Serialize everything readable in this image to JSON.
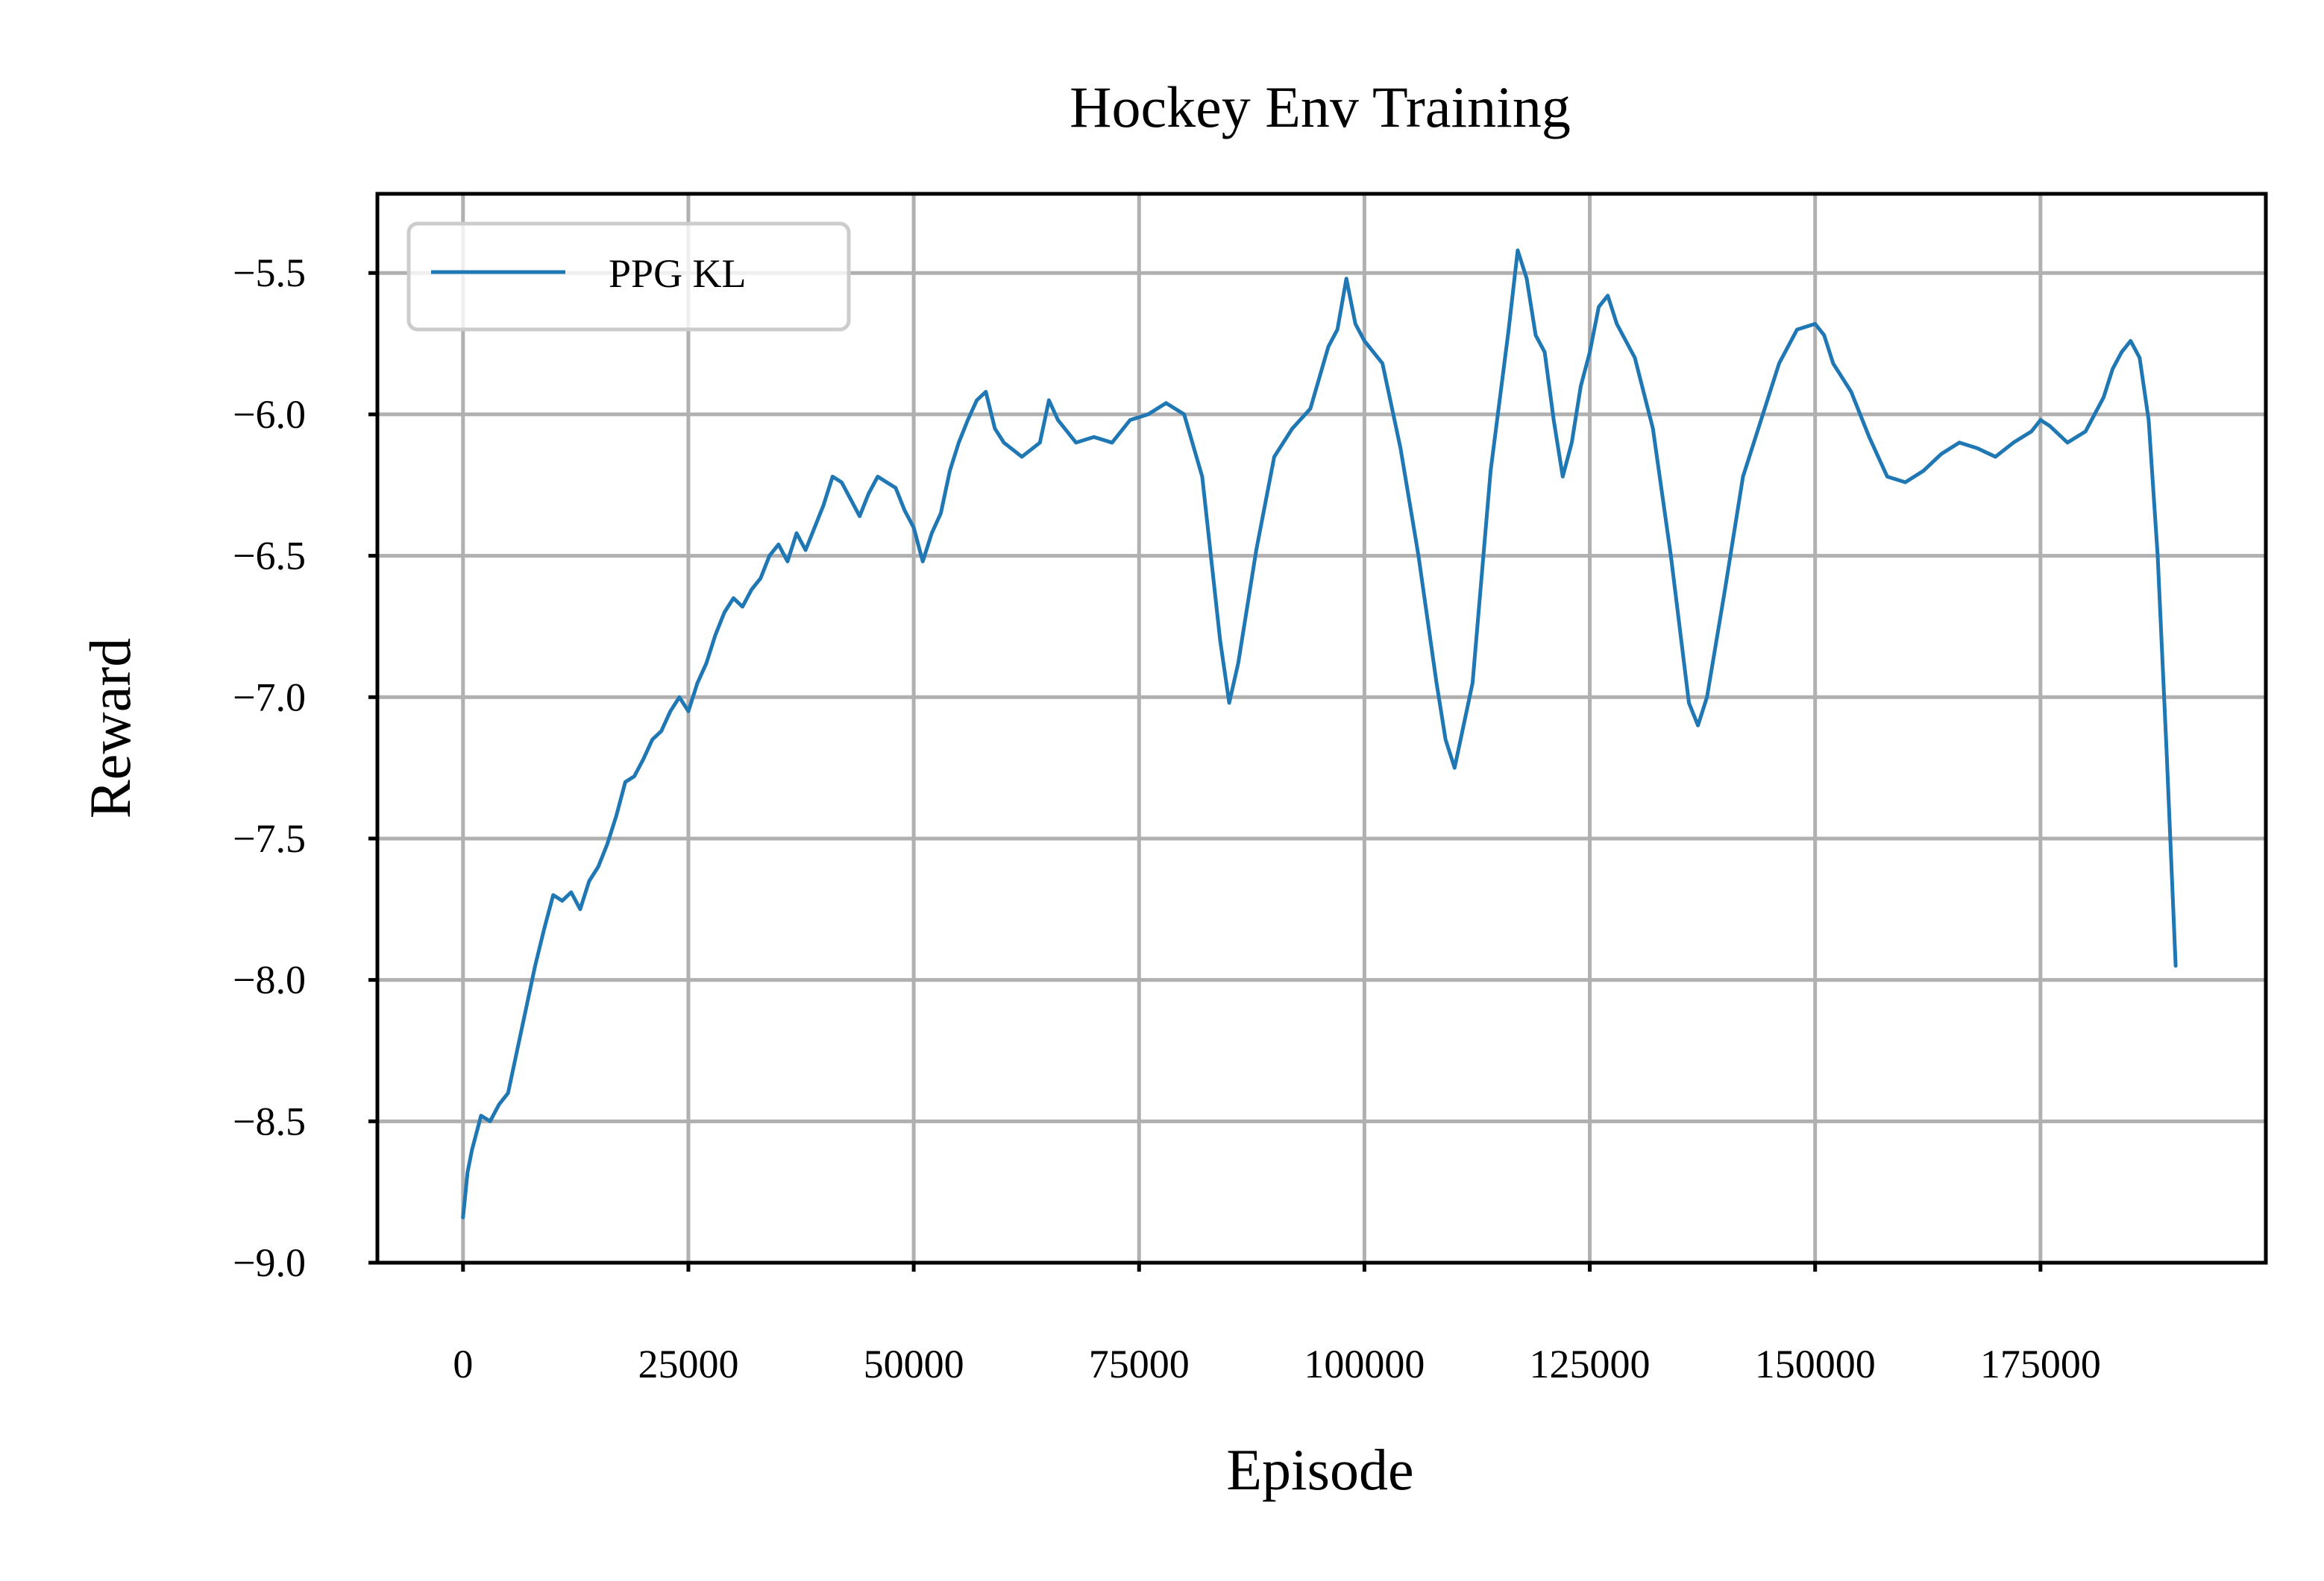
{
  "chart_data": {
    "type": "line",
    "title": "Hockey Env Training",
    "xlabel": "Episode",
    "ylabel": "Reward",
    "xlim": [
      -9500,
      200000
    ],
    "ylim": [
      -9.0,
      -5.22
    ],
    "xticks": [
      0,
      25000,
      50000,
      75000,
      100000,
      125000,
      150000,
      175000
    ],
    "xtick_labels": [
      "0",
      "25000",
      "50000",
      "75000",
      "100000",
      "125000",
      "150000",
      "175000"
    ],
    "yticks": [
      -9.0,
      -8.5,
      -8.0,
      -7.5,
      -7.0,
      -6.5,
      -6.0,
      -5.5
    ],
    "ytick_labels": [
      "−9.0",
      "−8.5",
      "−8.0",
      "−7.5",
      "−7.0",
      "−6.5",
      "−6.0",
      "−5.5"
    ],
    "grid": true,
    "legend_position": "upper-left",
    "series": [
      {
        "name": "PPG KL",
        "color": "#1f77b4",
        "x": [
          0,
          500,
          1000,
          2000,
          3000,
          4000,
          5000,
          6000,
          7000,
          8000,
          9000,
          10000,
          11000,
          12000,
          13000,
          14000,
          15000,
          16000,
          17000,
          18000,
          19000,
          20000,
          21000,
          22000,
          23000,
          24000,
          25000,
          26000,
          27000,
          28000,
          29000,
          30000,
          31000,
          32000,
          33000,
          34000,
          35000,
          36000,
          37000,
          38000,
          39000,
          40000,
          41000,
          42000,
          43000,
          44000,
          45000,
          46000,
          47000,
          48000,
          49000,
          50000,
          51000,
          52000,
          53000,
          54000,
          55000,
          56000,
          57000,
          58000,
          59000,
          60000,
          62000,
          64000,
          65000,
          66000,
          68000,
          70000,
          72000,
          74000,
          76000,
          78000,
          80000,
          82000,
          84000,
          85000,
          86000,
          88000,
          90000,
          92000,
          94000,
          96000,
          97000,
          98000,
          99000,
          100000,
          102000,
          104000,
          106000,
          108000,
          109000,
          110000,
          112000,
          114000,
          116000,
          117000,
          118000,
          119000,
          120000,
          121000,
          122000,
          123000,
          124000,
          125000,
          126000,
          127000,
          128000,
          130000,
          132000,
          134000,
          136000,
          137000,
          138000,
          140000,
          142000,
          144000,
          146000,
          148000,
          150000,
          151000,
          152000,
          154000,
          156000,
          158000,
          160000,
          162000,
          164000,
          166000,
          168000,
          170000,
          172000,
          174000,
          175000,
          176000,
          178000,
          180000,
          182000,
          183000,
          184000,
          185000,
          186000,
          187000,
          188000,
          189000,
          190000
        ],
        "y": [
          -8.84,
          -8.68,
          -8.6,
          -8.48,
          -8.5,
          -8.44,
          -8.4,
          -8.25,
          -8.1,
          -7.95,
          -7.82,
          -7.7,
          -7.72,
          -7.69,
          -7.75,
          -7.65,
          -7.6,
          -7.52,
          -7.42,
          -7.3,
          -7.28,
          -7.22,
          -7.15,
          -7.12,
          -7.05,
          -7.0,
          -7.05,
          -6.95,
          -6.88,
          -6.78,
          -6.7,
          -6.65,
          -6.68,
          -6.62,
          -6.58,
          -6.5,
          -6.46,
          -6.52,
          -6.42,
          -6.48,
          -6.4,
          -6.32,
          -6.22,
          -6.24,
          -6.3,
          -6.36,
          -6.28,
          -6.22,
          -6.24,
          -6.26,
          -6.34,
          -6.4,
          -6.52,
          -6.42,
          -6.35,
          -6.2,
          -6.1,
          -6.02,
          -5.95,
          -5.92,
          -6.05,
          -6.1,
          -6.15,
          -6.1,
          -5.95,
          -6.02,
          -6.1,
          -6.08,
          -6.1,
          -6.02,
          -6.0,
          -5.96,
          -6.0,
          -6.22,
          -6.8,
          -7.02,
          -6.88,
          -6.48,
          -6.15,
          -6.05,
          -5.98,
          -5.76,
          -5.7,
          -5.52,
          -5.68,
          -5.74,
          -5.82,
          -6.12,
          -6.5,
          -6.95,
          -7.15,
          -7.25,
          -6.95,
          -6.2,
          -5.7,
          -5.42,
          -5.52,
          -5.72,
          -5.78,
          -6.02,
          -6.22,
          -6.1,
          -5.9,
          -5.78,
          -5.62,
          -5.58,
          -5.68,
          -5.8,
          -6.05,
          -6.5,
          -7.02,
          -7.1,
          -7.0,
          -6.62,
          -6.22,
          -6.02,
          -5.82,
          -5.7,
          -5.68,
          -5.72,
          -5.82,
          -5.92,
          -6.08,
          -6.22,
          -6.24,
          -6.2,
          -6.14,
          -6.1,
          -6.12,
          -6.15,
          -6.1,
          -6.06,
          -6.02,
          -6.04,
          -6.1,
          -6.06,
          -5.94,
          -5.84,
          -5.78,
          -5.74,
          -5.8,
          -6.02,
          -6.5,
          -7.2,
          -7.95
        ]
      }
    ]
  }
}
